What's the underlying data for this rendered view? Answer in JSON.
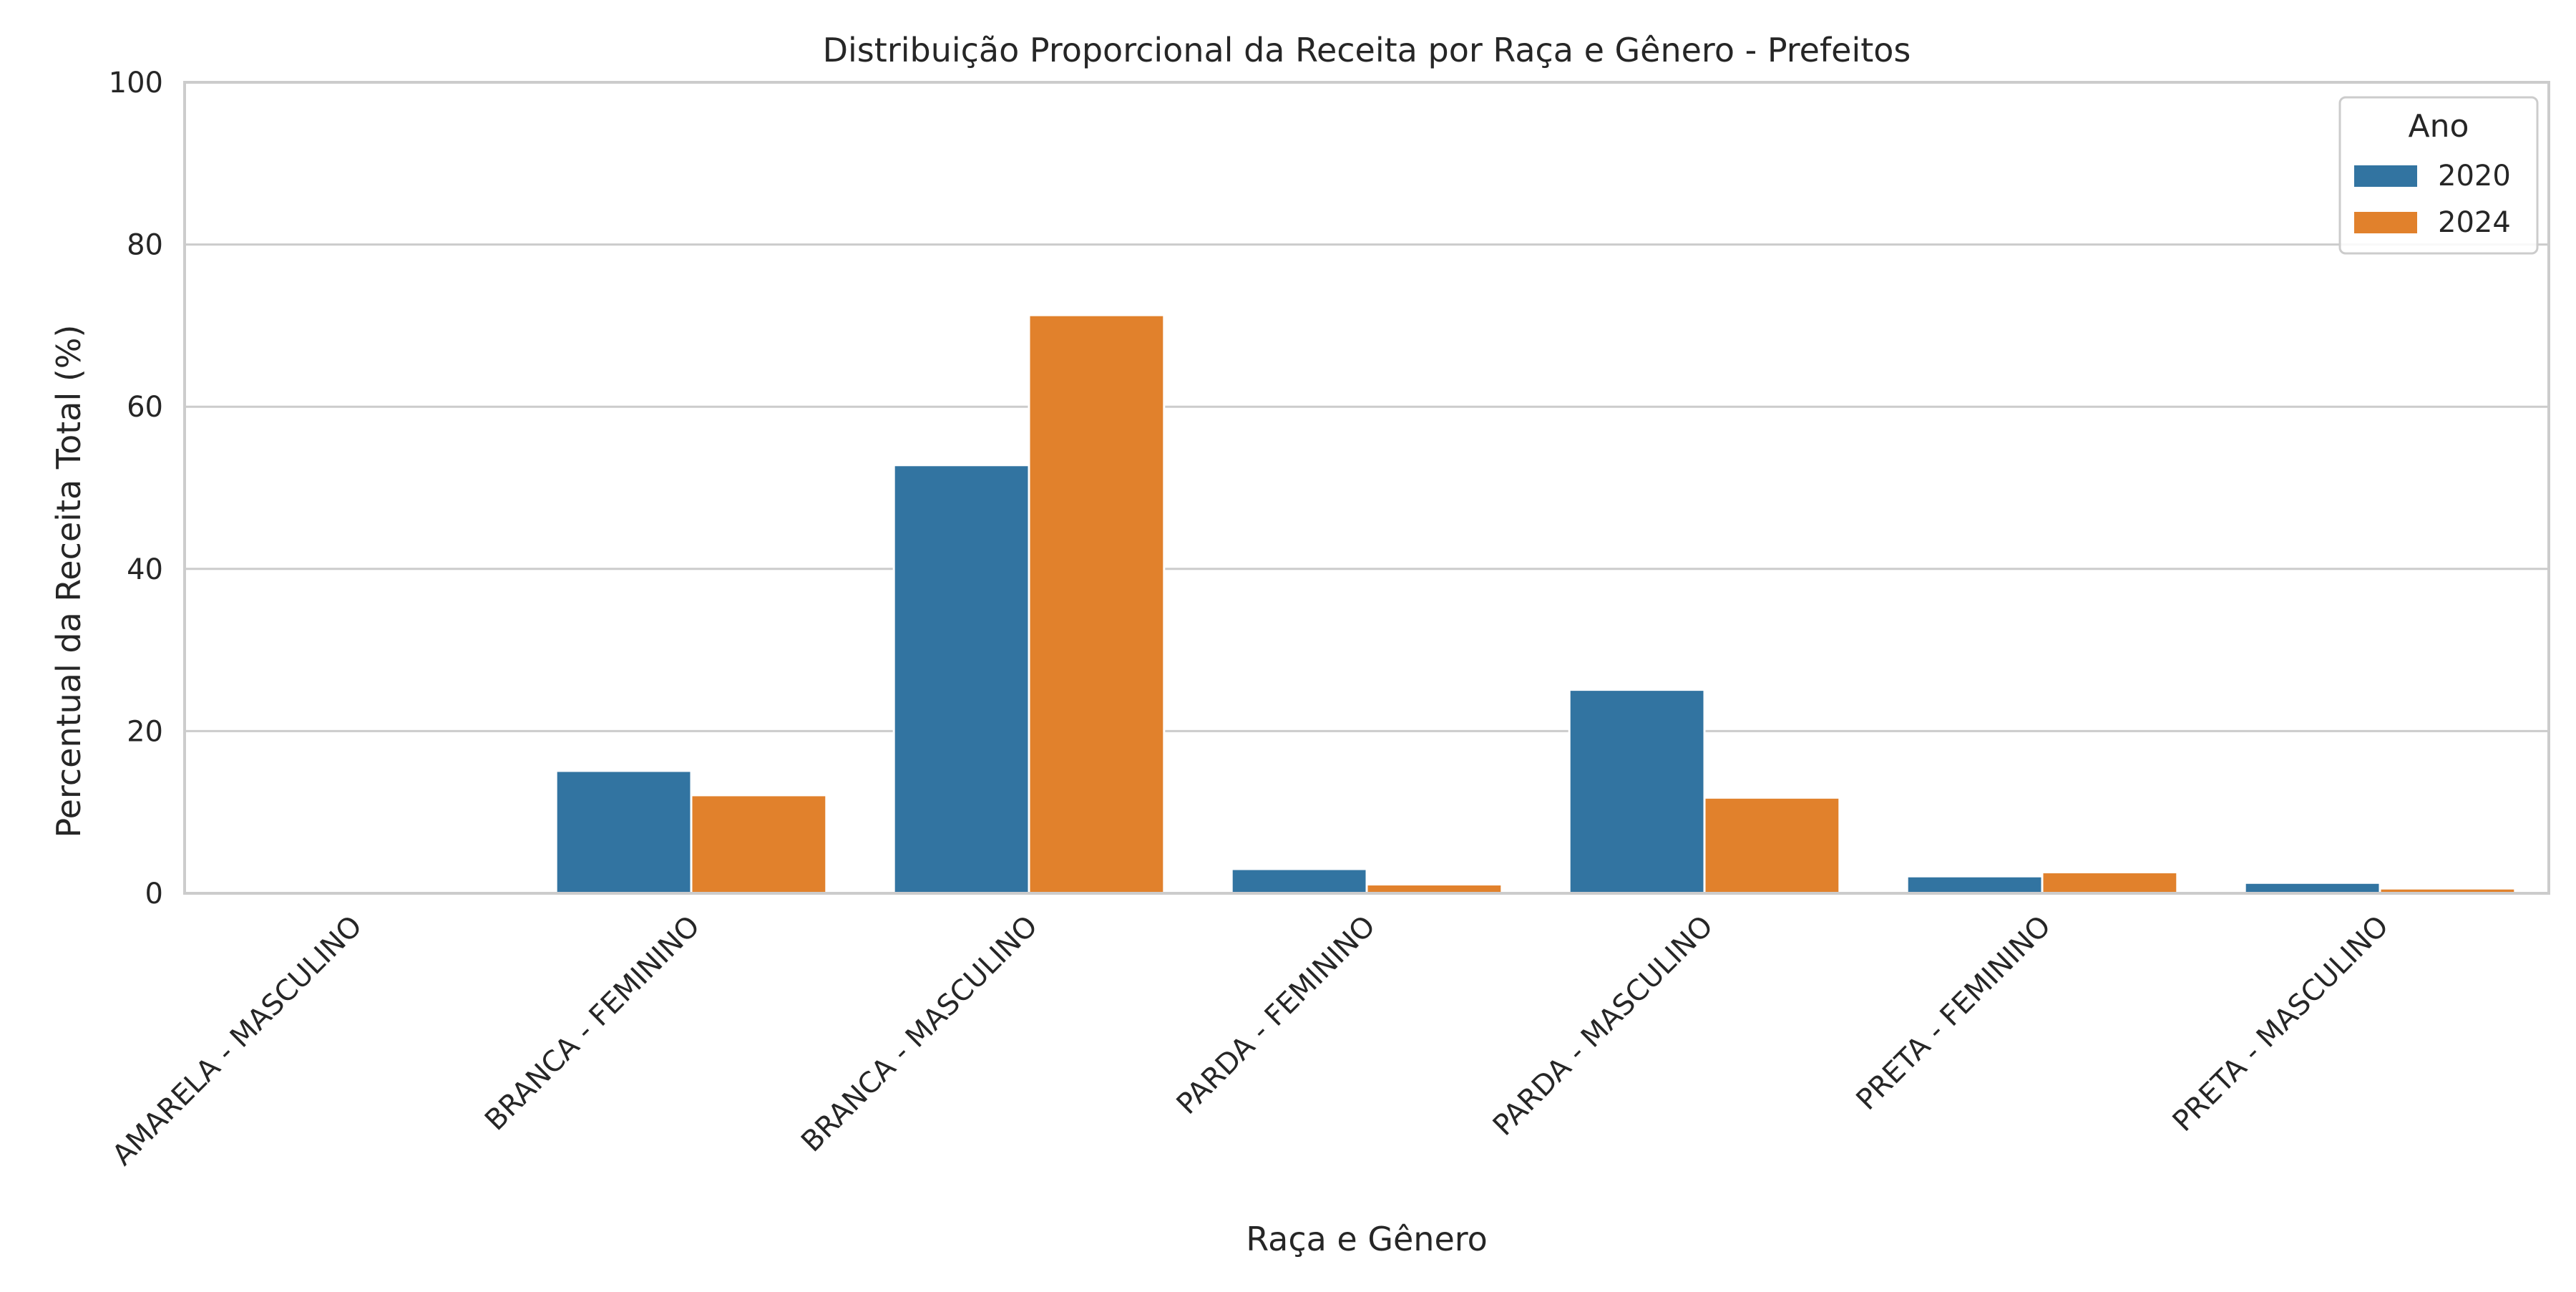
{
  "chart_data": {
    "type": "bar",
    "title": "Distribuição Proporcional da Receita por Raça e Gênero - Prefeitos",
    "xlabel": "Raça e Gênero",
    "ylabel": "Percentual da Receita Total (%)",
    "ylim": [
      0,
      100
    ],
    "yticks": [
      "0",
      "20",
      "40",
      "60",
      "80",
      "100"
    ],
    "grid": "horizontal",
    "categories": [
      "AMARELA - MASCULINO",
      "BRANCA - FEMININO",
      "BRANCA - MASCULINO",
      "PARDA - FEMININO",
      "PARDA - MASCULINO",
      "PRETA - FEMININO",
      "PRETA - MASCULINO"
    ],
    "series": [
      {
        "name": "2020",
        "color": "#3274a1",
        "values": [
          0.0,
          15.1,
          52.8,
          3.0,
          25.1,
          2.1,
          1.3
        ]
      },
      {
        "name": "2024",
        "color": "#e1812c",
        "values": [
          0.0,
          12.1,
          71.3,
          1.1,
          11.8,
          2.6,
          0.6
        ]
      }
    ],
    "legend": {
      "title": "Ano",
      "position": "top-right"
    }
  }
}
